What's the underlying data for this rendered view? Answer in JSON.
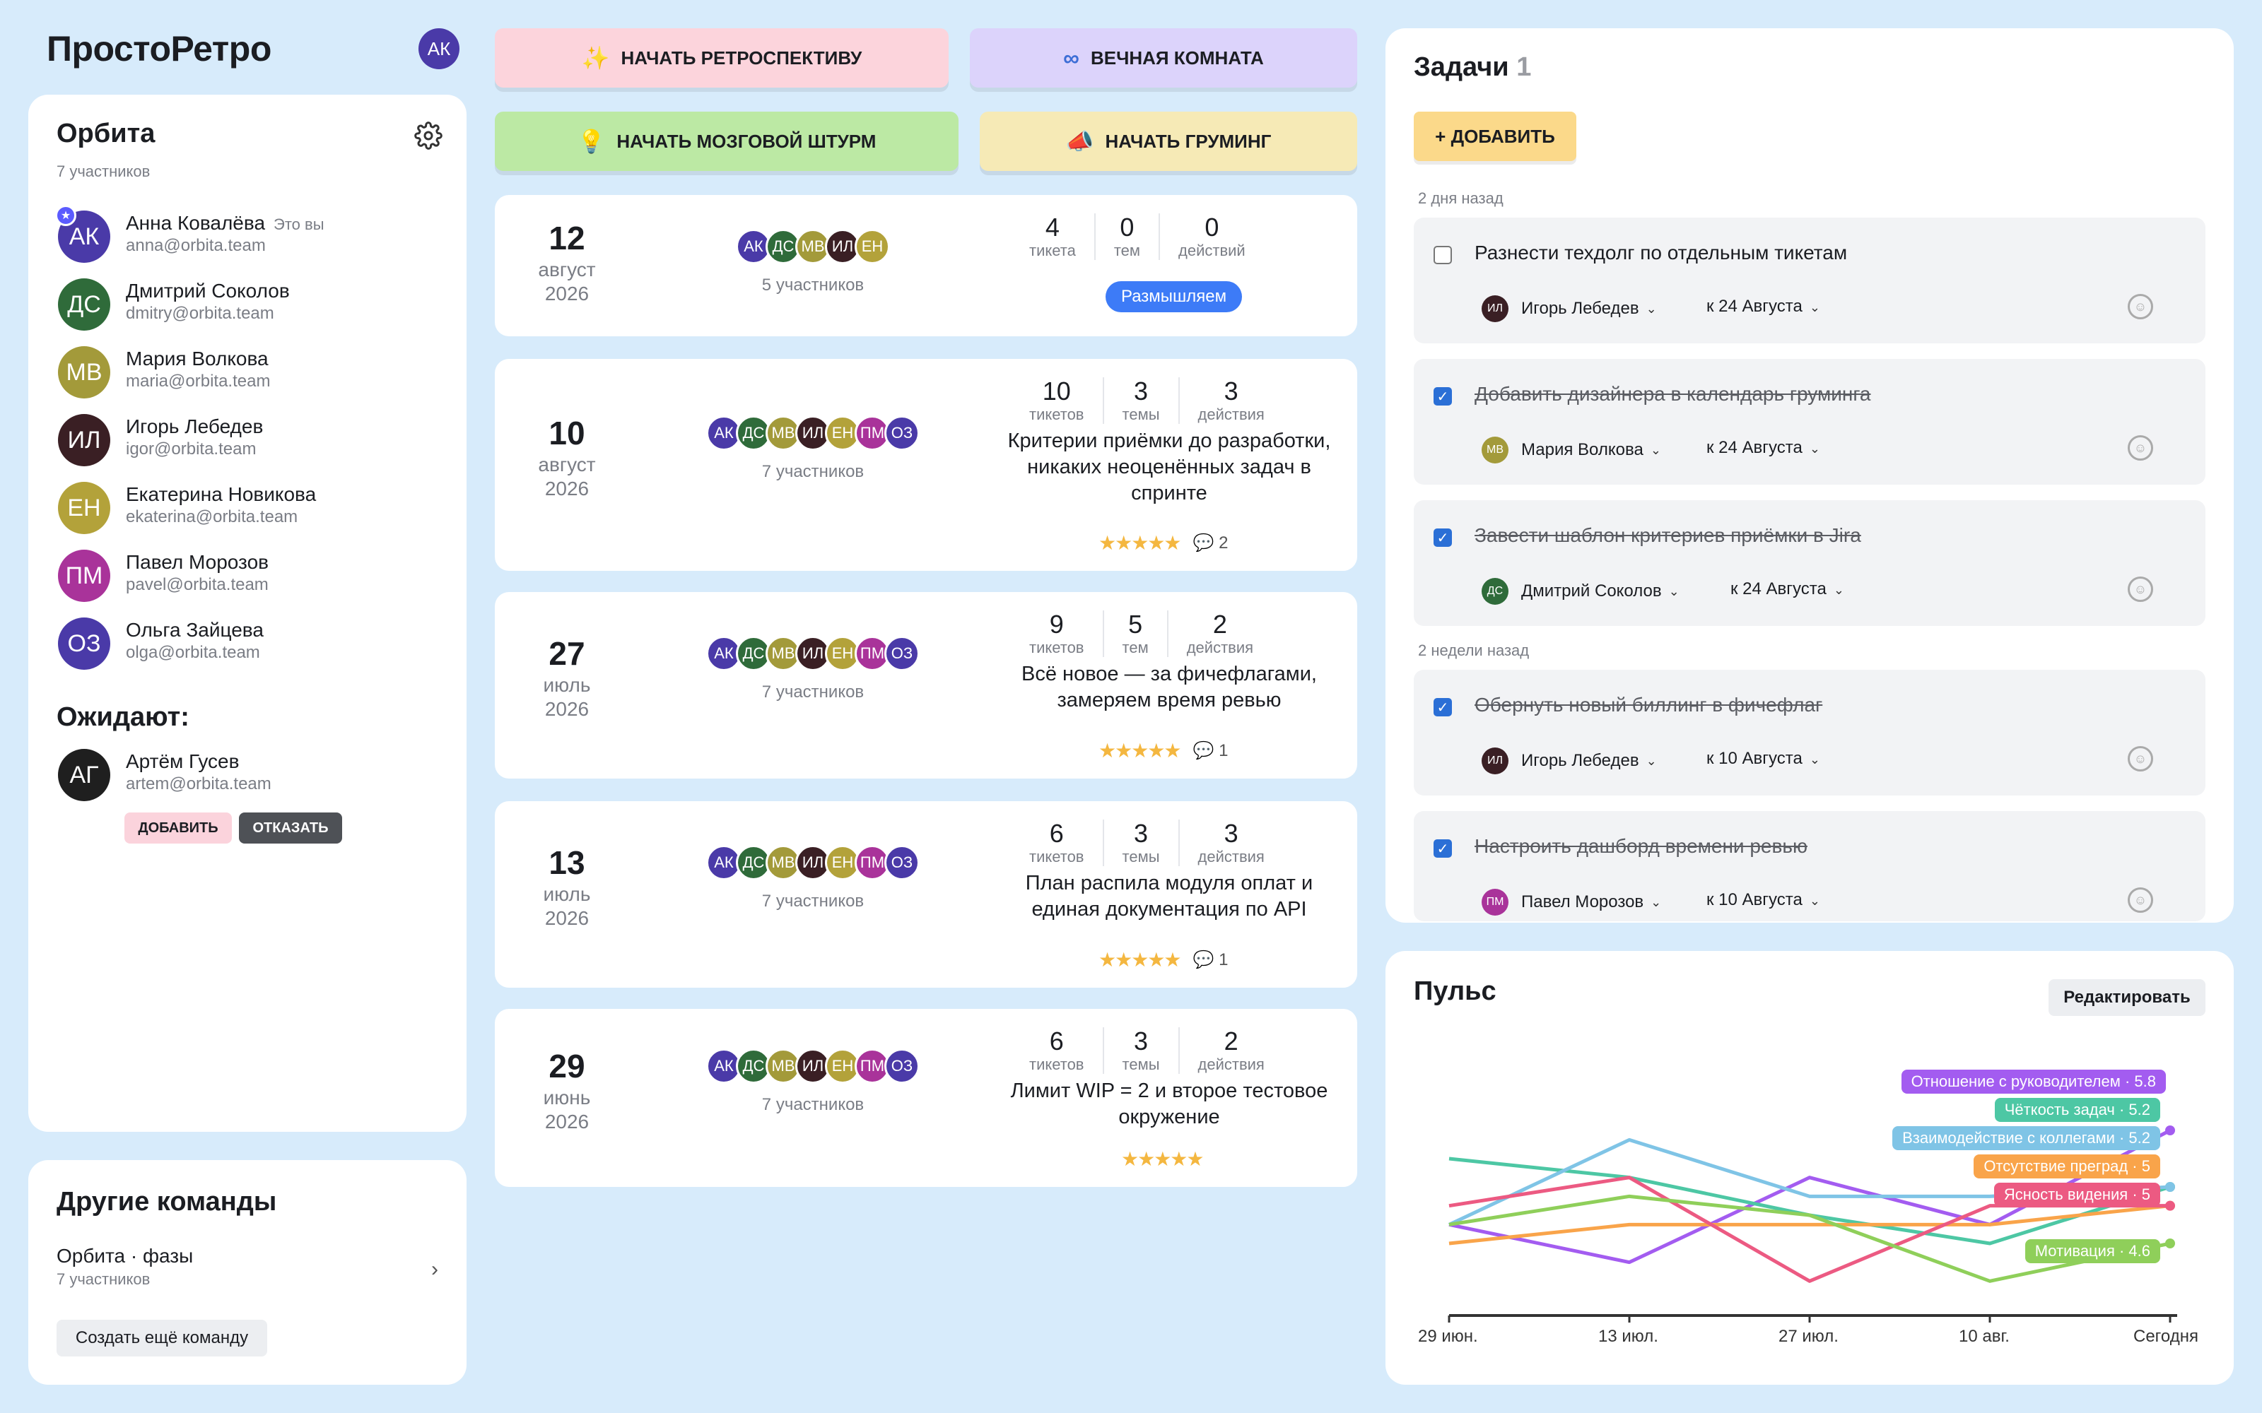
{
  "app": {
    "logo": "ПростоРетро",
    "user_initials": "АК"
  },
  "team": {
    "name": "Орбита",
    "count": "7 участников",
    "members": [
      {
        "initials": "АК",
        "name": "Анна Ковалёва",
        "badge": "Это вы",
        "email": "anna@orbita.team",
        "color": "#4a3aa8"
      },
      {
        "initials": "ДС",
        "name": "Дмитрий Соколов",
        "email": "dmitry@orbita.team",
        "color": "#2f6b3a"
      },
      {
        "initials": "МВ",
        "name": "Мария Волкова",
        "email": "maria@orbita.team",
        "color": "#a39a3a"
      },
      {
        "initials": "ИЛ",
        "name": "Игорь Лебедев",
        "email": "igor@orbita.team",
        "color": "#3a1f24"
      },
      {
        "initials": "ЕН",
        "name": "Екатерина Новикова",
        "email": "ekaterina@orbita.team",
        "color": "#b3a23a"
      },
      {
        "initials": "ПМ",
        "name": "Павел Морозов",
        "email": "pavel@orbita.team",
        "color": "#a9339a"
      },
      {
        "initials": "ОЗ",
        "name": "Ольга Зайцева",
        "email": "olga@orbita.team",
        "color": "#4a3aa8"
      }
    ],
    "waiting_title": "Ожидают:",
    "waiting": [
      {
        "initials": "АГ",
        "name": "Артём Гусев",
        "email": "artem@orbita.team",
        "color": "#1f1f1f",
        "add": "ДОБАВИТЬ",
        "reject": "ОТКАЗАТЬ"
      }
    ]
  },
  "other_teams": {
    "title": "Другие команды",
    "items": [
      {
        "name": "Орбита · фазы",
        "count": "7 участников"
      }
    ],
    "create": "Создать ещё команду"
  },
  "actions": {
    "retro": "НАЧАТЬ РЕТРОСПЕКТИВУ",
    "eternal": "ВЕЧНАЯ КОМНАТА",
    "brainstorm": "НАЧАТЬ МОЗГОВОЙ ШТУРМ",
    "grooming": "НАЧАТЬ ГРУМИНГ"
  },
  "retros": [
    {
      "day": "12",
      "month": "август",
      "year": "2026",
      "avatars": [
        "АК",
        "ДС",
        "МВ",
        "ИЛ",
        "ЕН"
      ],
      "participants": "5 участников",
      "s1": "4",
      "l1": "тикета",
      "s2": "0",
      "l2": "тем",
      "s3": "0",
      "l3": "действий",
      "status": "Размышляем",
      "title": "",
      "stars": "",
      "comments": ""
    },
    {
      "day": "10",
      "month": "август",
      "year": "2026",
      "avatars": [
        "АК",
        "ДС",
        "МВ",
        "ИЛ",
        "ЕН",
        "ПМ",
        "ОЗ"
      ],
      "participants": "7 участников",
      "s1": "10",
      "l1": "тикетов",
      "s2": "3",
      "l2": "темы",
      "s3": "3",
      "l3": "действия",
      "status": "",
      "title": "Критерии приёмки до разработки, никаких неоценённых задач в спринте",
      "stars": "★★★★★",
      "comments": "2"
    },
    {
      "day": "27",
      "month": "июль",
      "year": "2026",
      "avatars": [
        "АК",
        "ДС",
        "МВ",
        "ИЛ",
        "ЕН",
        "ПМ",
        "ОЗ"
      ],
      "participants": "7 участников",
      "s1": "9",
      "l1": "тикетов",
      "s2": "5",
      "l2": "тем",
      "s3": "2",
      "l3": "действия",
      "status": "",
      "title": "Всё новое — за фичефлагами, замеряем время ревью",
      "stars": "★★★★★",
      "comments": "1"
    },
    {
      "day": "13",
      "month": "июль",
      "year": "2026",
      "avatars": [
        "АК",
        "ДС",
        "МВ",
        "ИЛ",
        "ЕН",
        "ПМ",
        "ОЗ"
      ],
      "participants": "7 участников",
      "s1": "6",
      "l1": "тикетов",
      "s2": "3",
      "l2": "темы",
      "s3": "3",
      "l3": "действия",
      "status": "",
      "title": "План распила модуля оплат и единая документация по API",
      "stars": "★★★★★",
      "comments": "1"
    },
    {
      "day": "29",
      "month": "июнь",
      "year": "2026",
      "avatars": [
        "АК",
        "ДС",
        "МВ",
        "ИЛ",
        "ЕН",
        "ПМ",
        "ОЗ"
      ],
      "participants": "7 участников",
      "s1": "6",
      "l1": "тикетов",
      "s2": "3",
      "l2": "темы",
      "s3": "2",
      "l3": "действия",
      "status": "",
      "title": "Лимит WIP = 2 и второе тестовое окружение",
      "stars": "★★★★★",
      "comments": ""
    }
  ],
  "tasks": {
    "title": "Задачи",
    "count": "1",
    "add": "+ ДОБАВИТЬ",
    "group1": "2 дня назад",
    "group2": "2 недели назад",
    "items": [
      {
        "text": "Разнести техдолг по отдельным тикетам",
        "done": false,
        "assignee": "Игорь Лебедев",
        "initials": "ИЛ",
        "color": "#3a1f24",
        "due": "к 24 Августа"
      },
      {
        "text": "Добавить дизайнера в календарь груминга",
        "done": true,
        "assignee": "Мария Волкова",
        "initials": "МВ",
        "color": "#a39a3a",
        "due": "к 24 Августа"
      },
      {
        "text": "Завести шаблон критериев приёмки в Jira",
        "done": true,
        "assignee": "Дмитрий Соколов",
        "initials": "ДС",
        "color": "#2f6b3a",
        "due": "к 24 Августа"
      },
      {
        "text": "Обернуть новый биллинг в фичефлаг",
        "done": true,
        "assignee": "Игорь Лебедев",
        "initials": "ИЛ",
        "color": "#3a1f24",
        "due": "к 10 Августа"
      },
      {
        "text": "Настроить дашборд времени ревью",
        "done": true,
        "assignee": "Павел Морозов",
        "initials": "ПМ",
        "color": "#a9339a",
        "due": "к 10 Августа"
      }
    ]
  },
  "pulse": {
    "title": "Пульс",
    "edit": "Редактировать"
  },
  "chart_data": {
    "type": "line",
    "x": [
      "29 июн.",
      "13 июл.",
      "27 июл.",
      "10 авг.",
      "Сегодня"
    ],
    "ylim": [
      4,
      6.4
    ],
    "series": [
      {
        "name": "Отношение с руководителем · 5.8",
        "color": "#a35cf0",
        "values": [
          4.8,
          4.4,
          5.3,
          4.8,
          5.8
        ]
      },
      {
        "name": "Чёткость задач · 5.2",
        "color": "#4dc7a4",
        "values": [
          5.5,
          5.3,
          4.9,
          4.6,
          5.2
        ]
      },
      {
        "name": "Взаимодействие с коллегами · 5.2",
        "color": "#7fc4e6",
        "values": [
          4.8,
          5.7,
          5.1,
          5.1,
          5.2
        ]
      },
      {
        "name": "Отсутствие преград · 5",
        "color": "#f9a44a",
        "values": [
          4.6,
          4.8,
          4.8,
          4.8,
          5.0
        ]
      },
      {
        "name": "Ясность видения · 5",
        "color": "#ec5a82",
        "values": [
          5.0,
          5.3,
          4.2,
          5.0,
          5.0
        ]
      },
      {
        "name": "Мотивация · 4.6",
        "color": "#8fcf5a",
        "values": [
          4.8,
          5.1,
          4.9,
          4.2,
          4.6
        ]
      }
    ]
  }
}
